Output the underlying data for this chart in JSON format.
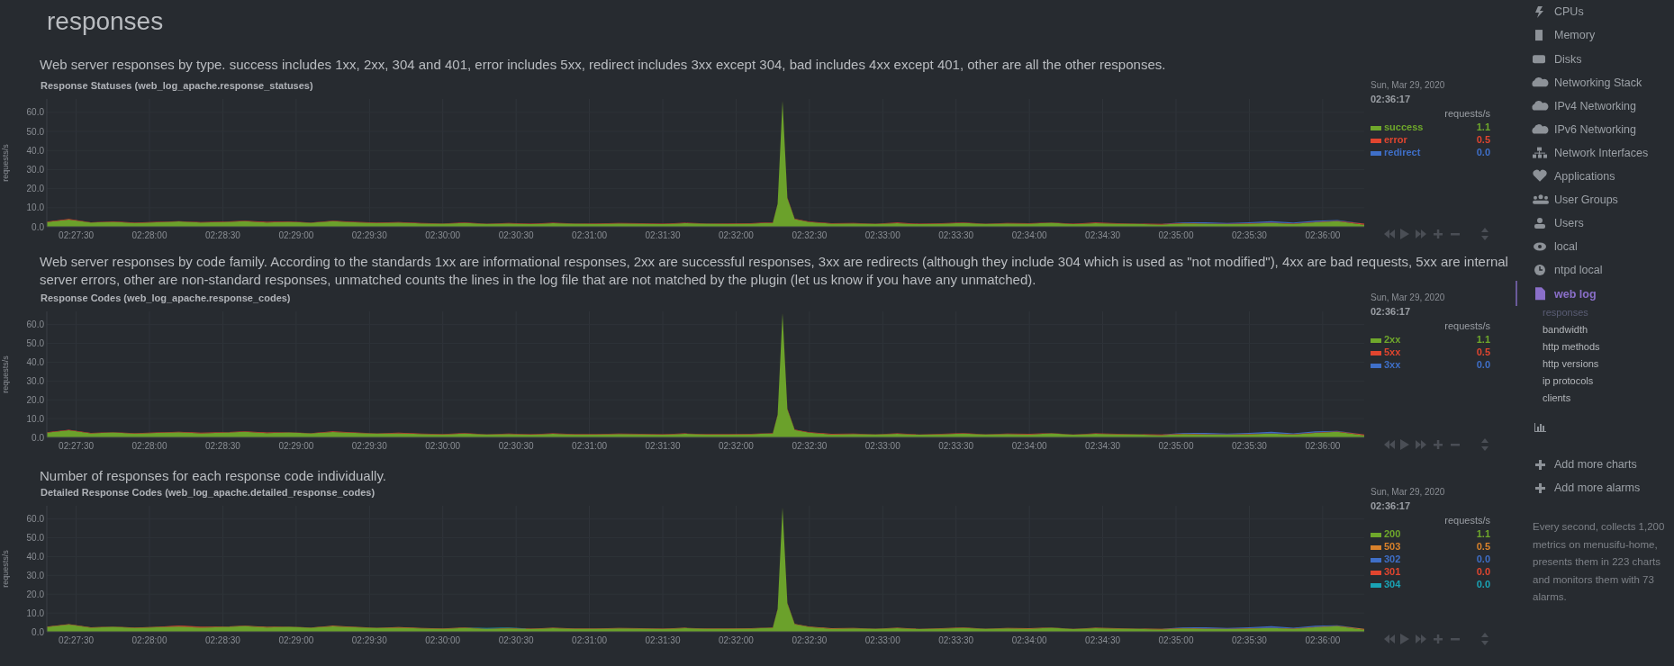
{
  "chart_data": [
    {
      "type": "other",
      "title": "responses"
    },
    {
      "type": "area",
      "title": "Response Statuses (web_log_apache.response_statuses)",
      "subtitle": "Web server responses by type. success includes 1xx, 2xx, 304 and 401, error includes 5xx, redirect includes 3xx except 304, bad includes 4xx except 401, other are all the other responses.",
      "ylabel": "requests/s",
      "legend_title": "requests/s",
      "legend": "right",
      "stacked": true,
      "grid": true,
      "annotations": [
        "Sun, Mar 29, 2020",
        "02:36:17",
        "1.1",
        "0.5",
        "0.0"
      ],
      "x": [
        "2020-03-29T02:27:18",
        "2020-03-29T02:27:27",
        "2020-03-29T02:27:36",
        "2020-03-29T02:27:45",
        "2020-03-29T02:27:54",
        "2020-03-29T02:28:03",
        "2020-03-29T02:28:12",
        "2020-03-29T02:28:21",
        "2020-03-29T02:28:30",
        "2020-03-29T02:28:39",
        "2020-03-29T02:28:48",
        "2020-03-29T02:28:57",
        "2020-03-29T02:29:06",
        "2020-03-29T02:29:15",
        "2020-03-29T02:29:24",
        "2020-03-29T02:29:33",
        "2020-03-29T02:29:42",
        "2020-03-29T02:29:51",
        "2020-03-29T02:30:00",
        "2020-03-29T02:30:09",
        "2020-03-29T02:30:18",
        "2020-03-29T02:30:27",
        "2020-03-29T02:30:36",
        "2020-03-29T02:30:45",
        "2020-03-29T02:30:54",
        "2020-03-29T02:31:03",
        "2020-03-29T02:31:12",
        "2020-03-29T02:31:21",
        "2020-03-29T02:31:30",
        "2020-03-29T02:31:39",
        "2020-03-29T02:31:48",
        "2020-03-29T02:31:57",
        "2020-03-29T02:32:06",
        "2020-03-29T02:32:12",
        "2020-03-29T02:32:15",
        "2020-03-29T02:32:17",
        "2020-03-29T02:32:19",
        "2020-03-29T02:32:21",
        "2020-03-29T02:32:24",
        "2020-03-29T02:32:30",
        "2020-03-29T02:32:39",
        "2020-03-29T02:32:48",
        "2020-03-29T02:32:57",
        "2020-03-29T02:33:06",
        "2020-03-29T02:33:15",
        "2020-03-29T02:33:24",
        "2020-03-29T02:33:33",
        "2020-03-29T02:33:42",
        "2020-03-29T02:33:51",
        "2020-03-29T02:34:00",
        "2020-03-29T02:34:09",
        "2020-03-29T02:34:18",
        "2020-03-29T02:34:27",
        "2020-03-29T02:34:36",
        "2020-03-29T02:34:45",
        "2020-03-29T02:34:54",
        "2020-03-29T02:35:03",
        "2020-03-29T02:35:12",
        "2020-03-29T02:35:21",
        "2020-03-29T02:35:30",
        "2020-03-29T02:35:39",
        "2020-03-29T02:35:48",
        "2020-03-29T02:35:57",
        "2020-03-29T02:36:06",
        "2020-03-29T02:36:17"
      ],
      "xlim": [
        "2020-03-29T02:27:18",
        "2020-03-29T02:36:17"
      ],
      "xticks": [
        {
          "value": "2020-03-29T02:27:30",
          "label": "02:27:30"
        },
        {
          "value": "2020-03-29T02:28:00",
          "label": "02:28:00"
        },
        {
          "value": "2020-03-29T02:28:30",
          "label": "02:28:30"
        },
        {
          "value": "2020-03-29T02:29:00",
          "label": "02:29:00"
        },
        {
          "value": "2020-03-29T02:29:30",
          "label": "02:29:30"
        },
        {
          "value": "2020-03-29T02:30:00",
          "label": "02:30:00"
        },
        {
          "value": "2020-03-29T02:30:30",
          "label": "02:30:30"
        },
        {
          "value": "2020-03-29T02:31:00",
          "label": "02:31:00"
        },
        {
          "value": "2020-03-29T02:31:30",
          "label": "02:31:30"
        },
        {
          "value": "2020-03-29T02:32:00",
          "label": "02:32:00"
        },
        {
          "value": "2020-03-29T02:32:30",
          "label": "02:32:30"
        },
        {
          "value": "2020-03-29T02:33:00",
          "label": "02:33:00"
        },
        {
          "value": "2020-03-29T02:33:30",
          "label": "02:33:30"
        },
        {
          "value": "2020-03-29T02:34:00",
          "label": "02:34:00"
        },
        {
          "value": "2020-03-29T02:34:30",
          "label": "02:34:30"
        },
        {
          "value": "2020-03-29T02:35:00",
          "label": "02:35:00"
        },
        {
          "value": "2020-03-29T02:35:30",
          "label": "02:35:30"
        },
        {
          "value": "2020-03-29T02:36:00",
          "label": "02:36:00"
        }
      ],
      "ylim": [
        0,
        67
      ],
      "yticks": [
        {
          "value": 0,
          "label": "0.0"
        },
        {
          "value": 10,
          "label": "10.0"
        },
        {
          "value": 20,
          "label": "20.0"
        },
        {
          "value": 30,
          "label": "30.0"
        },
        {
          "value": 40,
          "label": "40.0"
        },
        {
          "value": 50,
          "label": "50.0"
        },
        {
          "value": 60,
          "label": "60.0"
        }
      ],
      "series": [
        {
          "name": "success",
          "color": "#6fa82b",
          "values": [
            2.5,
            3.8,
            2.2,
            2.6,
            2.0,
            2.4,
            2.8,
            2.2,
            2.5,
            3.0,
            2.3,
            2.6,
            2.1,
            2.9,
            2.4,
            2.0,
            2.2,
            1.8,
            1.6,
            2.0,
            1.5,
            1.8,
            1.4,
            1.9,
            1.6,
            1.5,
            1.8,
            1.7,
            1.4,
            1.9,
            1.6,
            1.5,
            1.7,
            2.0,
            2.0,
            12.0,
            66.0,
            15.0,
            4.0,
            2.5,
            1.6,
            1.8,
            1.5,
            1.9,
            1.4,
            1.7,
            2.0,
            1.5,
            1.8,
            1.6,
            2.1,
            1.4,
            1.9,
            1.7,
            1.5,
            1.2,
            1.8,
            1.6,
            1.4,
            1.7,
            2.0,
            1.5,
            2.4,
            3.0,
            1.1
          ]
        },
        {
          "name": "error",
          "color": "#e0452f",
          "values": [
            0.2,
            0.3,
            0.2,
            0.2,
            0.3,
            0.2,
            0.2,
            0.3,
            0.2,
            0.2,
            0.3,
            0.2,
            0.2,
            0.3,
            0.2,
            0.2,
            0.3,
            0.2,
            0.2,
            0.3,
            0.2,
            0.2,
            0.3,
            0.2,
            0.2,
            0.3,
            0.2,
            0.2,
            0.3,
            0.2,
            0.2,
            0.3,
            0.2,
            0.2,
            0.3,
            0.2,
            0.2,
            0.3,
            0.2,
            0.2,
            0.3,
            0.2,
            0.2,
            0.3,
            0.2,
            0.2,
            0.3,
            0.2,
            0.2,
            0.3,
            0.2,
            0.2,
            0.3,
            0.2,
            0.2,
            0.3,
            0.2,
            0.2,
            0.3,
            0.2,
            0.2,
            0.3,
            0.2,
            0.2,
            0.5
          ]
        },
        {
          "name": "redirect",
          "color": "#3f6fc8",
          "values": [
            null,
            null,
            null,
            null,
            null,
            null,
            null,
            null,
            null,
            null,
            null,
            null,
            null,
            null,
            null,
            null,
            null,
            null,
            null,
            null,
            null,
            null,
            null,
            null,
            null,
            null,
            null,
            null,
            null,
            null,
            null,
            null,
            null,
            null,
            null,
            null,
            null,
            null,
            null,
            null,
            null,
            null,
            null,
            null,
            null,
            null,
            null,
            null,
            null,
            null,
            null,
            null,
            null,
            null,
            null,
            0,
            0.4,
            0.6,
            0.3,
            0.5,
            0.8,
            0.4,
            0.6,
            0.3,
            0.0
          ]
        }
      ]
    },
    {
      "type": "area",
      "title": "Response Codes (web_log_apache.response_codes)",
      "subtitle": "Web server responses by code family. According to the standards 1xx are informational responses, 2xx are successful responses, 3xx are redirects (although they include 304 which is used as \"not modified\"), 4xx are bad requests, 5xx are internal server errors, other are non-standard responses, unmatched counts the lines in the log file that are not matched by the plugin (let us know if you have any unmatched).",
      "ylabel": "requests/s",
      "legend_title": "requests/s",
      "legend": "right",
      "stacked": true,
      "grid": true,
      "annotations": [
        "Sun, Mar 29, 2020",
        "02:36:17",
        "1.1",
        "0.5",
        "0.0"
      ],
      "x": [
        "2020-03-29T02:27:18",
        "2020-03-29T02:27:27",
        "2020-03-29T02:27:36",
        "2020-03-29T02:27:45",
        "2020-03-29T02:27:54",
        "2020-03-29T02:28:03",
        "2020-03-29T02:28:12",
        "2020-03-29T02:28:21",
        "2020-03-29T02:28:30",
        "2020-03-29T02:28:39",
        "2020-03-29T02:28:48",
        "2020-03-29T02:28:57",
        "2020-03-29T02:29:06",
        "2020-03-29T02:29:15",
        "2020-03-29T02:29:24",
        "2020-03-29T02:29:33",
        "2020-03-29T02:29:42",
        "2020-03-29T02:29:51",
        "2020-03-29T02:30:00",
        "2020-03-29T02:30:09",
        "2020-03-29T02:30:18",
        "2020-03-29T02:30:27",
        "2020-03-29T02:30:36",
        "2020-03-29T02:30:45",
        "2020-03-29T02:30:54",
        "2020-03-29T02:31:03",
        "2020-03-29T02:31:12",
        "2020-03-29T02:31:21",
        "2020-03-29T02:31:30",
        "2020-03-29T02:31:39",
        "2020-03-29T02:31:48",
        "2020-03-29T02:31:57",
        "2020-03-29T02:32:06",
        "2020-03-29T02:32:12",
        "2020-03-29T02:32:15",
        "2020-03-29T02:32:17",
        "2020-03-29T02:32:19",
        "2020-03-29T02:32:21",
        "2020-03-29T02:32:24",
        "2020-03-29T02:32:30",
        "2020-03-29T02:32:39",
        "2020-03-29T02:32:48",
        "2020-03-29T02:32:57",
        "2020-03-29T02:33:06",
        "2020-03-29T02:33:15",
        "2020-03-29T02:33:24",
        "2020-03-29T02:33:33",
        "2020-03-29T02:33:42",
        "2020-03-29T02:33:51",
        "2020-03-29T02:34:00",
        "2020-03-29T02:34:09",
        "2020-03-29T02:34:18",
        "2020-03-29T02:34:27",
        "2020-03-29T02:34:36",
        "2020-03-29T02:34:45",
        "2020-03-29T02:34:54",
        "2020-03-29T02:35:03",
        "2020-03-29T02:35:12",
        "2020-03-29T02:35:21",
        "2020-03-29T02:35:30",
        "2020-03-29T02:35:39",
        "2020-03-29T02:35:48",
        "2020-03-29T02:35:57",
        "2020-03-29T02:36:06",
        "2020-03-29T02:36:17"
      ],
      "xlim": [
        "2020-03-29T02:27:18",
        "2020-03-29T02:36:17"
      ],
      "xticks": [
        {
          "value": "2020-03-29T02:27:30",
          "label": "02:27:30"
        },
        {
          "value": "2020-03-29T02:28:00",
          "label": "02:28:00"
        },
        {
          "value": "2020-03-29T02:28:30",
          "label": "02:28:30"
        },
        {
          "value": "2020-03-29T02:29:00",
          "label": "02:29:00"
        },
        {
          "value": "2020-03-29T02:29:30",
          "label": "02:29:30"
        },
        {
          "value": "2020-03-29T02:30:00",
          "label": "02:30:00"
        },
        {
          "value": "2020-03-29T02:30:30",
          "label": "02:30:30"
        },
        {
          "value": "2020-03-29T02:31:00",
          "label": "02:31:00"
        },
        {
          "value": "2020-03-29T02:31:30",
          "label": "02:31:30"
        },
        {
          "value": "2020-03-29T02:32:00",
          "label": "02:32:00"
        },
        {
          "value": "2020-03-29T02:32:30",
          "label": "02:32:30"
        },
        {
          "value": "2020-03-29T02:33:00",
          "label": "02:33:00"
        },
        {
          "value": "2020-03-29T02:33:30",
          "label": "02:33:30"
        },
        {
          "value": "2020-03-29T02:34:00",
          "label": "02:34:00"
        },
        {
          "value": "2020-03-29T02:34:30",
          "label": "02:34:30"
        },
        {
          "value": "2020-03-29T02:35:00",
          "label": "02:35:00"
        },
        {
          "value": "2020-03-29T02:35:30",
          "label": "02:35:30"
        },
        {
          "value": "2020-03-29T02:36:00",
          "label": "02:36:00"
        }
      ],
      "ylim": [
        0,
        67
      ],
      "yticks": [
        {
          "value": 0,
          "label": "0.0"
        },
        {
          "value": 10,
          "label": "10.0"
        },
        {
          "value": 20,
          "label": "20.0"
        },
        {
          "value": 30,
          "label": "30.0"
        },
        {
          "value": 40,
          "label": "40.0"
        },
        {
          "value": 50,
          "label": "50.0"
        },
        {
          "value": 60,
          "label": "60.0"
        }
      ],
      "series": [
        {
          "name": "2xx",
          "color": "#6fa82b",
          "values": [
            2.5,
            3.8,
            2.2,
            2.6,
            2.0,
            2.4,
            2.8,
            2.2,
            2.5,
            3.0,
            2.3,
            2.6,
            2.1,
            2.9,
            2.4,
            2.0,
            2.2,
            1.8,
            1.6,
            2.0,
            1.5,
            1.8,
            1.4,
            1.9,
            1.6,
            1.5,
            1.8,
            1.7,
            1.4,
            1.9,
            1.6,
            1.5,
            1.7,
            2.0,
            2.0,
            12.0,
            66.0,
            15.0,
            4.0,
            2.5,
            1.6,
            1.8,
            1.5,
            1.9,
            1.4,
            1.7,
            2.0,
            1.5,
            1.8,
            1.6,
            2.1,
            1.4,
            1.9,
            1.7,
            1.5,
            1.2,
            1.8,
            1.6,
            1.4,
            1.7,
            2.0,
            1.5,
            2.4,
            3.0,
            1.1
          ]
        },
        {
          "name": "5xx",
          "color": "#e0452f",
          "values": [
            0.2,
            0.3,
            0.2,
            0.2,
            0.3,
            0.2,
            0.2,
            0.3,
            0.2,
            0.2,
            0.3,
            0.2,
            0.2,
            0.3,
            0.2,
            0.2,
            0.3,
            0.2,
            0.2,
            0.3,
            0.2,
            0.2,
            0.3,
            0.2,
            0.2,
            0.3,
            0.2,
            0.2,
            0.3,
            0.2,
            0.2,
            0.3,
            0.2,
            0.2,
            0.3,
            0.2,
            0.2,
            0.3,
            0.2,
            0.2,
            0.3,
            0.2,
            0.2,
            0.3,
            0.2,
            0.2,
            0.3,
            0.2,
            0.2,
            0.3,
            0.2,
            0.2,
            0.3,
            0.2,
            0.2,
            0.3,
            0.2,
            0.2,
            0.3,
            0.2,
            0.2,
            0.3,
            0.2,
            0.2,
            0.5
          ]
        },
        {
          "name": "3xx",
          "color": "#3f6fc8",
          "values": [
            null,
            null,
            null,
            null,
            null,
            null,
            null,
            null,
            null,
            null,
            null,
            null,
            null,
            null,
            null,
            null,
            null,
            null,
            null,
            null,
            null,
            null,
            null,
            null,
            null,
            null,
            null,
            null,
            null,
            null,
            null,
            null,
            null,
            null,
            null,
            null,
            null,
            null,
            null,
            null,
            null,
            null,
            null,
            null,
            null,
            null,
            null,
            null,
            null,
            null,
            null,
            null,
            null,
            null,
            null,
            0,
            0.4,
            0.6,
            0.3,
            0.5,
            0.8,
            0.4,
            0.6,
            0.3,
            0.0
          ]
        }
      ]
    },
    {
      "type": "area",
      "title": "Detailed Response Codes (web_log_apache.detailed_response_codes)",
      "subtitle": "Number of responses for each response code individually.",
      "ylabel": "requests/s",
      "legend_title": "requests/s",
      "legend": "right",
      "stacked": true,
      "grid": true,
      "annotations": [
        "Sun, Mar 29, 2020",
        "02:36:17",
        "1.1",
        "0.5",
        "0.0",
        "0.0",
        "0.0"
      ],
      "x": [
        "2020-03-29T02:27:18",
        "2020-03-29T02:27:27",
        "2020-03-29T02:27:36",
        "2020-03-29T02:27:45",
        "2020-03-29T02:27:54",
        "2020-03-29T02:28:03",
        "2020-03-29T02:28:12",
        "2020-03-29T02:28:21",
        "2020-03-29T02:28:30",
        "2020-03-29T02:28:39",
        "2020-03-29T02:28:48",
        "2020-03-29T02:28:57",
        "2020-03-29T02:29:06",
        "2020-03-29T02:29:15",
        "2020-03-29T02:29:24",
        "2020-03-29T02:29:33",
        "2020-03-29T02:29:42",
        "2020-03-29T02:29:51",
        "2020-03-29T02:30:00",
        "2020-03-29T02:30:09",
        "2020-03-29T02:30:18",
        "2020-03-29T02:30:27",
        "2020-03-29T02:30:36",
        "2020-03-29T02:30:45",
        "2020-03-29T02:30:54",
        "2020-03-29T02:31:03",
        "2020-03-29T02:31:12",
        "2020-03-29T02:31:21",
        "2020-03-29T02:31:30",
        "2020-03-29T02:31:39",
        "2020-03-29T02:31:48",
        "2020-03-29T02:31:57",
        "2020-03-29T02:32:06",
        "2020-03-29T02:32:12",
        "2020-03-29T02:32:15",
        "2020-03-29T02:32:17",
        "2020-03-29T02:32:19",
        "2020-03-29T02:32:21",
        "2020-03-29T02:32:24",
        "2020-03-29T02:32:30",
        "2020-03-29T02:32:39",
        "2020-03-29T02:32:48",
        "2020-03-29T02:32:57",
        "2020-03-29T02:33:06",
        "2020-03-29T02:33:15",
        "2020-03-29T02:33:24",
        "2020-03-29T02:33:33",
        "2020-03-29T02:33:42",
        "2020-03-29T02:33:51",
        "2020-03-29T02:34:00",
        "2020-03-29T02:34:09",
        "2020-03-29T02:34:18",
        "2020-03-29T02:34:27",
        "2020-03-29T02:34:36",
        "2020-03-29T02:34:45",
        "2020-03-29T02:34:54",
        "2020-03-29T02:35:03",
        "2020-03-29T02:35:12",
        "2020-03-29T02:35:21",
        "2020-03-29T02:35:30",
        "2020-03-29T02:35:39",
        "2020-03-29T02:35:48",
        "2020-03-29T02:35:57",
        "2020-03-29T02:36:06",
        "2020-03-29T02:36:17"
      ],
      "xlim": [
        "2020-03-29T02:27:18",
        "2020-03-29T02:36:17"
      ],
      "xticks": [
        {
          "value": "2020-03-29T02:27:30",
          "label": "02:27:30"
        },
        {
          "value": "2020-03-29T02:28:00",
          "label": "02:28:00"
        },
        {
          "value": "2020-03-29T02:28:30",
          "label": "02:28:30"
        },
        {
          "value": "2020-03-29T02:29:00",
          "label": "02:29:00"
        },
        {
          "value": "2020-03-29T02:29:30",
          "label": "02:29:30"
        },
        {
          "value": "2020-03-29T02:30:00",
          "label": "02:30:00"
        },
        {
          "value": "2020-03-29T02:30:30",
          "label": "02:30:30"
        },
        {
          "value": "2020-03-29T02:31:00",
          "label": "02:31:00"
        },
        {
          "value": "2020-03-29T02:31:30",
          "label": "02:31:30"
        },
        {
          "value": "2020-03-29T02:32:00",
          "label": "02:32:00"
        },
        {
          "value": "2020-03-29T02:32:30",
          "label": "02:32:30"
        },
        {
          "value": "2020-03-29T02:33:00",
          "label": "02:33:00"
        },
        {
          "value": "2020-03-29T02:33:30",
          "label": "02:33:30"
        },
        {
          "value": "2020-03-29T02:34:00",
          "label": "02:34:00"
        },
        {
          "value": "2020-03-29T02:34:30",
          "label": "02:34:30"
        },
        {
          "value": "2020-03-29T02:35:00",
          "label": "02:35:00"
        },
        {
          "value": "2020-03-29T02:35:30",
          "label": "02:35:30"
        },
        {
          "value": "2020-03-29T02:36:00",
          "label": "02:36:00"
        }
      ],
      "ylim": [
        0,
        67
      ],
      "yticks": [
        {
          "value": 0,
          "label": "0.0"
        },
        {
          "value": 10,
          "label": "10.0"
        },
        {
          "value": 20,
          "label": "20.0"
        },
        {
          "value": 30,
          "label": "30.0"
        },
        {
          "value": 40,
          "label": "40.0"
        },
        {
          "value": 50,
          "label": "50.0"
        },
        {
          "value": 60,
          "label": "60.0"
        }
      ],
      "series": [
        {
          "name": "200",
          "color": "#6fa82b",
          "values": [
            2.5,
            3.8,
            2.2,
            2.6,
            2.0,
            2.4,
            2.8,
            2.2,
            2.5,
            3.0,
            2.3,
            2.6,
            2.1,
            2.9,
            2.4,
            2.0,
            2.2,
            1.8,
            1.6,
            2.0,
            1.5,
            1.8,
            1.4,
            1.9,
            1.6,
            1.5,
            1.8,
            1.7,
            1.4,
            1.9,
            1.6,
            1.5,
            1.7,
            2.0,
            2.0,
            12.0,
            66.0,
            15.0,
            4.0,
            2.5,
            1.6,
            1.8,
            1.5,
            1.9,
            1.4,
            1.7,
            2.0,
            1.5,
            1.8,
            1.6,
            2.1,
            1.4,
            1.9,
            1.7,
            1.5,
            1.2,
            1.8,
            1.6,
            1.4,
            1.7,
            2.0,
            1.5,
            2.4,
            3.0,
            1.1
          ]
        },
        {
          "name": "503",
          "color": "#d9822b",
          "values": [
            0.2,
            0.3,
            0.2,
            0.2,
            0.3,
            0.2,
            0.2,
            0.3,
            0.2,
            0.2,
            0.3,
            0.2,
            0.2,
            0.3,
            0.2,
            0.2,
            0.3,
            0.2,
            0.2,
            0.3,
            0.2,
            0.2,
            0.3,
            0.2,
            0.2,
            0.3,
            0.2,
            0.2,
            0.3,
            0.2,
            0.2,
            0.3,
            0.2,
            0.2,
            0.3,
            0.2,
            0.2,
            0.3,
            0.2,
            0.2,
            0.3,
            0.2,
            0.2,
            0.3,
            0.2,
            0.2,
            0.3,
            0.2,
            0.2,
            0.3,
            0.2,
            0.2,
            0.3,
            0.2,
            0.2,
            0.3,
            0.2,
            0.2,
            0.3,
            0.2,
            0.2,
            0.3,
            0.2,
            0.2,
            0.5
          ]
        },
        {
          "name": "302",
          "color": "#3f6fc8",
          "values": [
            null,
            null,
            null,
            null,
            null,
            null,
            null,
            null,
            null,
            null,
            null,
            null,
            null,
            null,
            null,
            null,
            null,
            null,
            null,
            null,
            null,
            null,
            null,
            null,
            null,
            null,
            null,
            null,
            null,
            null,
            null,
            null,
            null,
            null,
            null,
            null,
            null,
            null,
            null,
            null,
            null,
            null,
            null,
            null,
            null,
            null,
            null,
            null,
            null,
            null,
            null,
            null,
            null,
            null,
            null,
            0,
            0.4,
            0.6,
            0.3,
            0.5,
            0.8,
            0.4,
            0.6,
            0.3,
            0.0
          ]
        },
        {
          "name": "301",
          "color": "#e0452f",
          "values": [
            null,
            null,
            null,
            null,
            null,
            0,
            0.3,
            0.3,
            0,
            null,
            null,
            null,
            null,
            null,
            null,
            null,
            null,
            null,
            null,
            null,
            null,
            null,
            null,
            null,
            null,
            null,
            null,
            null,
            null,
            null,
            null,
            null,
            null,
            null,
            null,
            null,
            null,
            null,
            null,
            null,
            null,
            null,
            null,
            null,
            null,
            null,
            null,
            null,
            null,
            null,
            null,
            null,
            null,
            null,
            null,
            null,
            null,
            null,
            null,
            null,
            null,
            null,
            null,
            null,
            null
          ]
        },
        {
          "name": "304",
          "color": "#1aa3b5",
          "values": [
            null,
            null,
            null,
            null,
            null,
            null,
            null,
            null,
            null,
            null,
            null,
            null,
            null,
            null,
            null,
            null,
            null,
            null,
            null,
            0,
            0.3,
            0.3,
            0,
            null,
            null,
            null,
            null,
            null,
            null,
            null,
            null,
            null,
            null,
            null,
            null,
            null,
            null,
            null,
            null,
            null,
            null,
            null,
            null,
            null,
            null,
            null,
            null,
            null,
            null,
            null,
            null,
            null,
            null,
            null,
            null,
            null,
            null,
            null,
            null,
            null,
            null,
            null,
            null,
            null,
            null
          ]
        }
      ]
    },
    {
      "type": "other",
      "annotations": [
        "CPUs",
        "Memory",
        "Disks",
        "Networking Stack",
        "IPv4 Networking",
        "IPv6 Networking",
        "Network Interfaces",
        "Applications",
        "User Groups",
        "Users",
        "local",
        "ntpd local",
        "web log",
        "responses",
        "bandwidth",
        "http methods",
        "http versions",
        "ip protocols",
        "clients",
        "Add more charts",
        "Add more alarms",
        "Every second, collects 1,200 metrics on menusifu-home, presents them in 223 charts and monitors them with 73 alarms."
      ]
    }
  ]
}
